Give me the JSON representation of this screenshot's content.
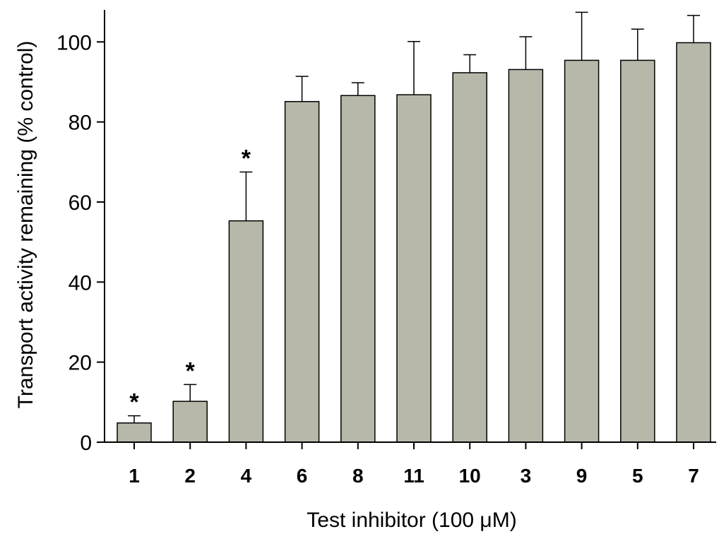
{
  "chart_data": {
    "type": "bar",
    "title": "",
    "xlabel": "Test inhibitor (100 μM)",
    "ylabel": "Transport activity remaining (% control)",
    "ylim": [
      0,
      108
    ],
    "yticks": [
      0,
      20,
      40,
      60,
      80,
      100
    ],
    "categories": [
      "1",
      "2",
      "4",
      "6",
      "8",
      "11",
      "10",
      "3",
      "9",
      "5",
      "7"
    ],
    "values": [
      4.8,
      10.2,
      55.3,
      85.1,
      86.6,
      86.8,
      92.3,
      93.1,
      95.4,
      95.4,
      99.8
    ],
    "errors": [
      1.8,
      4.2,
      12.2,
      6.3,
      3.2,
      13.3,
      4.5,
      8.2,
      12.0,
      7.8,
      6.8
    ],
    "significance": [
      "*",
      "*",
      "*",
      "",
      "",
      "",
      "",
      "",
      "",
      "",
      ""
    ],
    "bar_color": "#b8b8aa",
    "grid": false,
    "legend": "none"
  }
}
